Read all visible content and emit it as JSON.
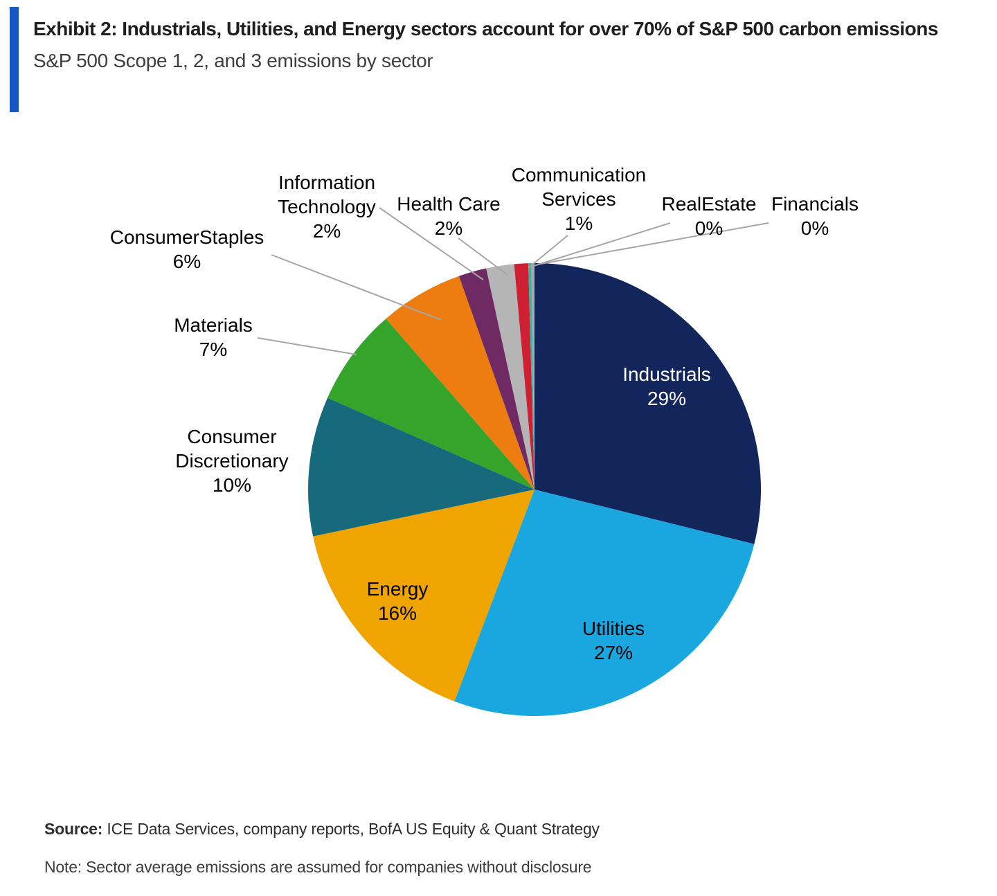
{
  "exhibit": {
    "title": "Exhibit 2: Industrials, Utilities, and Energy sectors account for over 70% of S&P 500 carbon emissions",
    "subtitle": "S&P 500 Scope 1, 2, and 3 emissions by sector"
  },
  "colors": {
    "accent": "#1757c2",
    "leader_line": "#a6a6a6",
    "background": "#ffffff"
  },
  "footer": {
    "source_label": "Source:",
    "source_text": " ICE Data Services, company reports, BofA US Equity & Quant Strategy",
    "note_text": "Note: Sector average emissions are assumed for companies without disclosure"
  },
  "chart_data": {
    "type": "pie",
    "title": "S&P 500 Scope 1, 2, and 3 emissions by sector",
    "start_angle_deg": 0,
    "direction": "clockwise",
    "legend_position": "none",
    "slices": [
      {
        "label": "Industrials",
        "value": 29,
        "pct_label": "29%",
        "color": "#12265c",
        "label_placement": "inside",
        "text_color": "#ffffff"
      },
      {
        "label": "Utilities",
        "value": 27,
        "pct_label": "27%",
        "color": "#1aa7e0",
        "label_placement": "inside",
        "text_color": "#000000"
      },
      {
        "label": "Energy",
        "value": 16,
        "pct_label": "16%",
        "color": "#f0a400",
        "label_placement": "inside",
        "text_color": "#000000"
      },
      {
        "label": "Consumer Discretionary",
        "value": 10,
        "pct_label": "10%",
        "color": "#17697c",
        "label_placement": "outside"
      },
      {
        "label": "Materials",
        "value": 7,
        "pct_label": "7%",
        "color": "#35a42b",
        "label_placement": "outside"
      },
      {
        "label": "ConsumerStaples",
        "value": 6,
        "pct_label": "6%",
        "color": "#ee7d11",
        "label_placement": "outside"
      },
      {
        "label": "Information Technology",
        "value": 2,
        "pct_label": "2%",
        "color": "#6f2963",
        "label_placement": "outside"
      },
      {
        "label": "Health Care",
        "value": 2,
        "pct_label": "2%",
        "color": "#b5b5b5",
        "label_placement": "outside"
      },
      {
        "label": "Communication Services",
        "value": 1,
        "pct_label": "1%",
        "color": "#cf2033",
        "label_placement": "outside"
      },
      {
        "label": "RealEstate",
        "value": 0,
        "pct_label": "0%",
        "color": "#35b5a8",
        "label_placement": "outside"
      },
      {
        "label": "Financials",
        "value": 0,
        "pct_label": "0%",
        "color": "#a7a9ac",
        "label_placement": "outside"
      }
    ]
  }
}
